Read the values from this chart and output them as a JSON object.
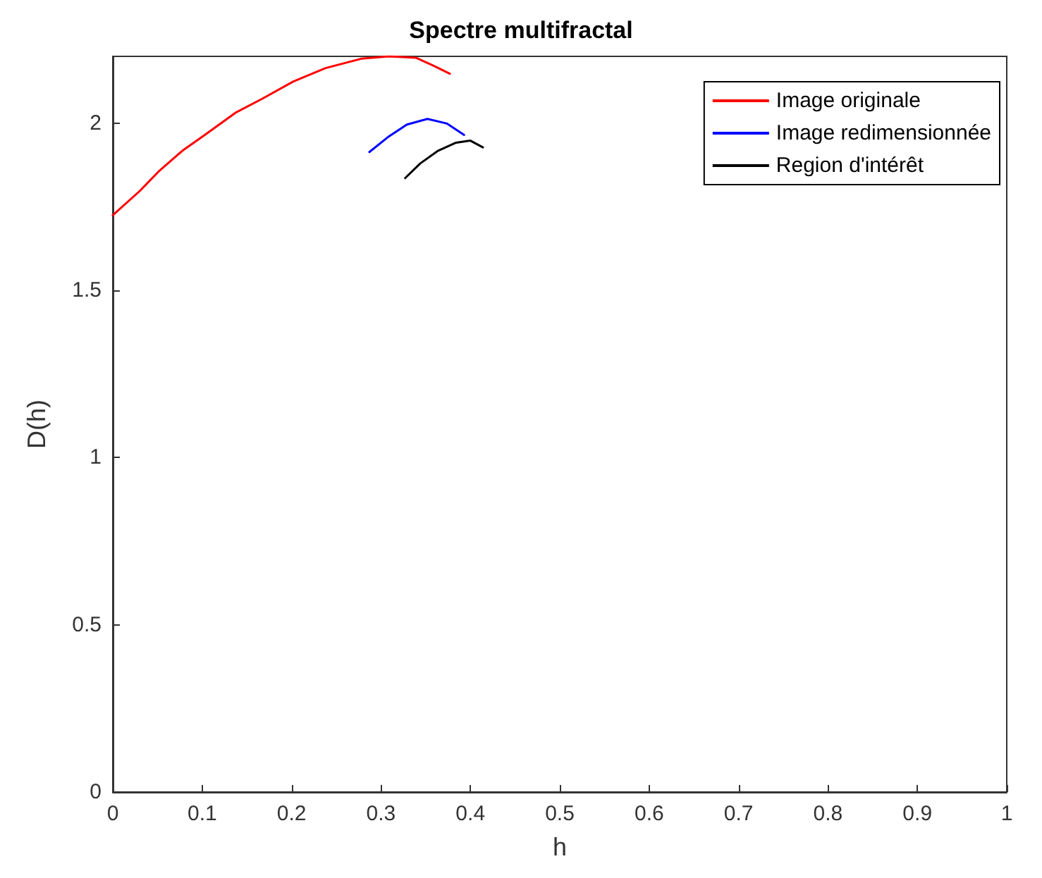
{
  "chart_data": {
    "type": "line",
    "title": "Spectre multifractal",
    "xlabel": "h",
    "ylabel": "D(h)",
    "xlim": [
      0,
      1
    ],
    "xticks": [
      0,
      0.1,
      0.2,
      0.3,
      0.4,
      0.5,
      0.6,
      0.7,
      0.8,
      0.9,
      1
    ],
    "ylim": [
      0,
      2.2
    ],
    "yticks": [
      0,
      0.5,
      1,
      1.5,
      2
    ],
    "grid": false,
    "legend": "top right",
    "marker": "none",
    "line_style": "solid",
    "series": [
      {
        "name": "Image originale",
        "color": "#ff0000",
        "x": [
          0,
          0.03,
          0.051,
          0.078,
          0.104,
          0.137,
          0.167,
          0.202,
          0.238,
          0.278,
          0.309,
          0.339,
          0.359,
          0.377
        ],
        "values": [
          1.725,
          1.797,
          1.855,
          1.918,
          1.967,
          2.031,
          2.073,
          2.125,
          2.165,
          2.193,
          2.2,
          2.196,
          2.172,
          2.148
        ]
      },
      {
        "name": "Image redimensionnée",
        "color": "#0000ff",
        "x": [
          0.287,
          0.309,
          0.329,
          0.352,
          0.374,
          0.393
        ],
        "values": [
          1.914,
          1.961,
          1.996,
          2.013,
          1.999,
          1.965
        ]
      },
      {
        "name": "Region d'intérêt",
        "color": "#000000",
        "x": [
          0.327,
          0.344,
          0.364,
          0.384,
          0.4,
          0.414
        ],
        "values": [
          1.836,
          1.88,
          1.918,
          1.942,
          1.948,
          1.928
        ]
      }
    ]
  }
}
